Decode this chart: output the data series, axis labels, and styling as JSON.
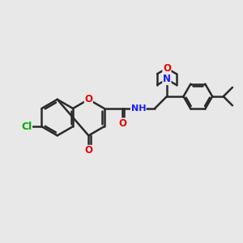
{
  "background_color": "#e8e8e8",
  "bond_color": "#2a2a2a",
  "bond_width": 1.8,
  "atom_colors": {
    "O": "#e60000",
    "N": "#1a1aff",
    "Cl": "#00aa00",
    "C": "#2a2a2a"
  },
  "font_size": 8.5,
  "figsize": [
    3.0,
    3.0
  ],
  "dpi": 100,
  "xlim": [
    0,
    12
  ],
  "ylim": [
    0,
    12
  ]
}
